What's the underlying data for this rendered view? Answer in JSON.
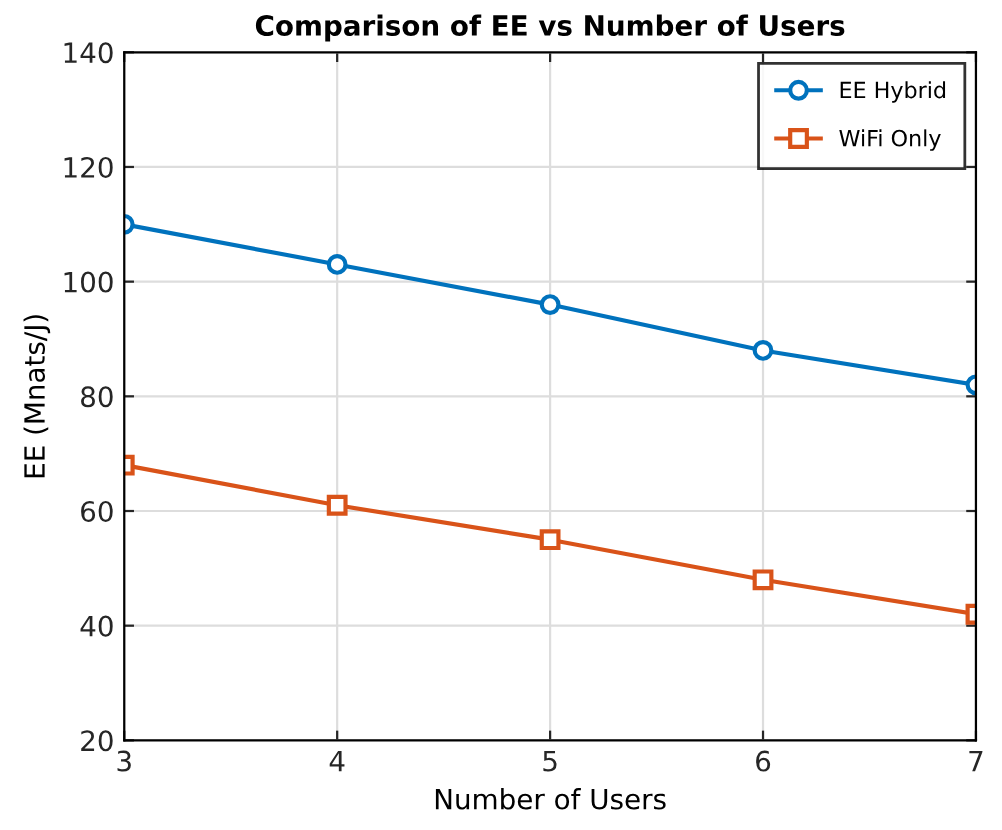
{
  "chart_data": {
    "type": "line",
    "title": "Comparison of EE vs Number of Users",
    "xlabel": "Number of Users",
    "ylabel": "EE (Mnats/J)",
    "x": [
      3,
      4,
      5,
      6,
      7
    ],
    "series": [
      {
        "name": "EE Hybrid",
        "color": "#0072bd",
        "marker": "circle",
        "values": [
          110,
          103,
          96,
          88,
          82
        ]
      },
      {
        "name": "WiFi Only",
        "color": "#d95319",
        "marker": "square",
        "values": [
          68,
          61,
          55,
          48,
          42
        ]
      }
    ],
    "xlim": [
      3,
      7
    ],
    "xticks": [
      3,
      4,
      5,
      6,
      7
    ],
    "ylim": [
      20,
      140
    ],
    "yticks": [
      20,
      40,
      60,
      80,
      100,
      120,
      140
    ],
    "grid": true,
    "legend": "top right",
    "line_style": "solid"
  }
}
